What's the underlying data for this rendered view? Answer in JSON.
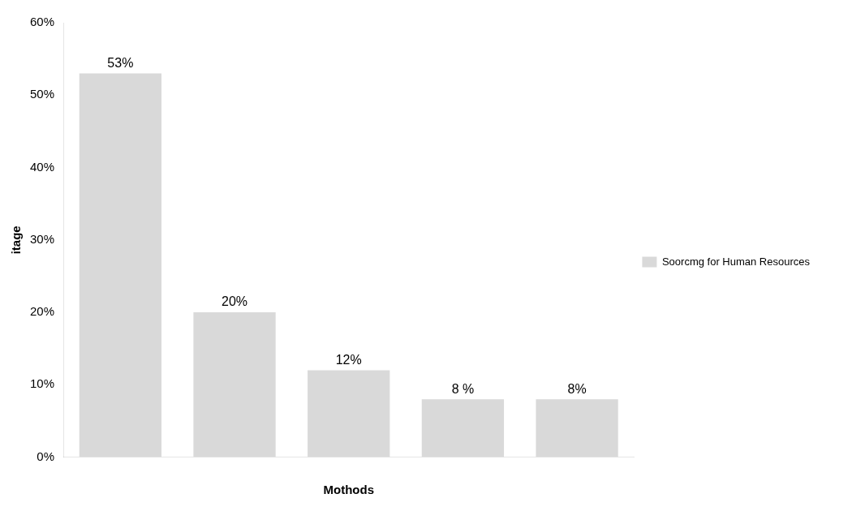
{
  "chart_data": {
    "type": "bar",
    "xlabel": "Mothods",
    "ylabel": "itage",
    "categories": [
      null,
      null,
      null,
      null,
      null
    ],
    "series": [
      {
        "name": "Soorcmg for Human Resources",
        "color": "#d9d9d9",
        "values": [
          53,
          20,
          12,
          8,
          8
        ],
        "value_labels": [
          "53%",
          "20%",
          "12%",
          "8 %",
          "8%"
        ]
      }
    ],
    "ylim": [
      0,
      60
    ],
    "yticks": [
      {
        "value": 0,
        "label": "0%"
      },
      {
        "value": 10,
        "label": "10%"
      },
      {
        "value": 20,
        "label": "20%"
      },
      {
        "value": 30,
        "label": "30%"
      },
      {
        "value": 40,
        "label": "40%"
      },
      {
        "value": 50,
        "label": "50%"
      },
      {
        "value": 60,
        "label": "60%"
      }
    ],
    "legend": "right",
    "grid": false
  }
}
